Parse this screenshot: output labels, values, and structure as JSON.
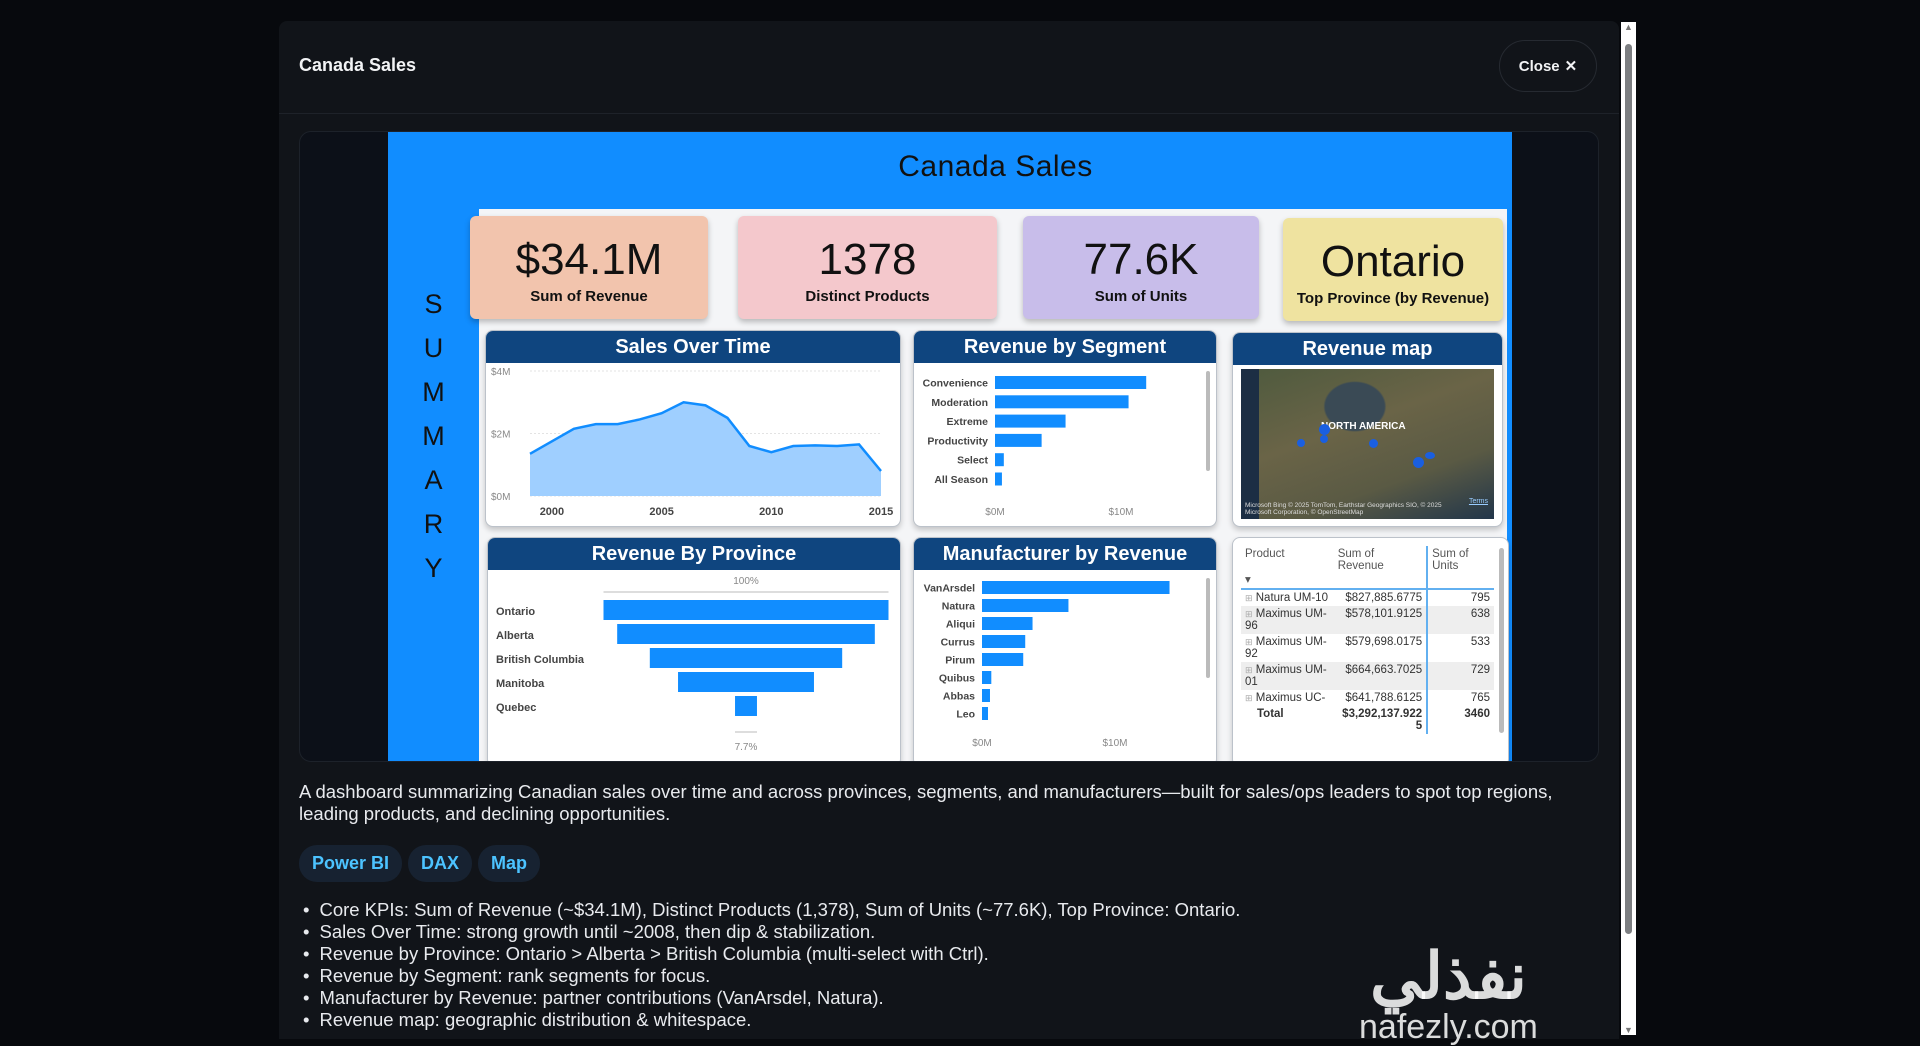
{
  "modal": {
    "title": "Canada Sales",
    "close_label": "Close",
    "close_icon": "x-icon"
  },
  "dashboard": {
    "title": "Canada Sales",
    "side_letters": [
      "S",
      "U",
      "M",
      "M",
      "A",
      "R",
      "Y"
    ],
    "kpis": [
      {
        "value": "$34.1M",
        "label": "Sum of Revenue",
        "color": "#f2c4ad"
      },
      {
        "value": "1378",
        "label": "Distinct Products",
        "color": "#f4c8cc"
      },
      {
        "value": "77.6K",
        "label": "Sum of Units",
        "color": "#c8bdea"
      },
      {
        "value": "Ontario",
        "label": "Top Province (by Revenue)",
        "color": "#efe3a0"
      }
    ],
    "panels": {
      "sales_time": "Sales Over Time",
      "segment": "Revenue by Segment",
      "map": "Revenue map",
      "province": "Revenue By Province",
      "manufacturer": "Manufacturer by Revenue"
    },
    "map": {
      "label": "NORTH AMERICA",
      "credit": "© 2025 TomTom, Earthstar Geographics SIO, © 2025 Microsoft Corporation, © OpenStreetMap",
      "terms": "Terms",
      "brand": "Microsoft Bing"
    },
    "table": {
      "headers": [
        "Product",
        "Sum of Revenue",
        "Sum of Units"
      ],
      "rows": [
        [
          "Natura UM-10",
          "$827,885.6775",
          "795"
        ],
        [
          "Maximus UM-96",
          "$578,101.9125",
          "638"
        ],
        [
          "Maximus UM-92",
          "$579,698.0175",
          "533"
        ],
        [
          "Maximus UM-01",
          "$664,663.7025",
          "729"
        ],
        [
          "Maximus UC-",
          "$641,788.6125",
          "765"
        ]
      ],
      "total": [
        "Total",
        "$3,292,137.9225",
        "3460"
      ]
    }
  },
  "chart_data": [
    {
      "type": "area",
      "title": "Sales Over Time",
      "x": [
        1999,
        2000,
        2001,
        2002,
        2003,
        2004,
        2005,
        2006,
        2007,
        2008,
        2009,
        2010,
        2011,
        2012,
        2013,
        2014,
        2015
      ],
      "values": [
        1.35,
        1.75,
        2.15,
        2.3,
        2.3,
        2.45,
        2.65,
        3.0,
        2.9,
        2.5,
        1.6,
        1.4,
        1.6,
        1.62,
        1.6,
        1.65,
        0.8
      ],
      "unit": "$M",
      "ylim": [
        0,
        4
      ],
      "yticks": [
        "$0M",
        "$2M",
        "$4M"
      ],
      "xticks": [
        "2000",
        "2005",
        "2010",
        "2015"
      ],
      "color": "#118dff"
    },
    {
      "type": "bar",
      "title": "Revenue by Segment",
      "categories": [
        "Convenience",
        "Moderation",
        "Extreme",
        "Productivity",
        "Select",
        "All Season"
      ],
      "values": [
        12.0,
        10.6,
        5.6,
        3.7,
        0.7,
        0.55
      ],
      "unit": "$M",
      "xticks": [
        "$0M",
        "$10M"
      ]
    },
    {
      "type": "funnel",
      "title": "Revenue By Province",
      "categories": [
        "Ontario",
        "Alberta",
        "British Columbia",
        "Manitoba",
        "Quebec"
      ],
      "values": [
        100,
        90.4,
        67.5,
        47.7,
        7.7
      ],
      "unit": "%",
      "top_label": "100%",
      "bottom_label": "7.7%"
    },
    {
      "type": "bar",
      "title": "Manufacturer by Revenue",
      "categories": [
        "VanArsdel",
        "Natura",
        "Aliqui",
        "Currus",
        "Pirum",
        "Quibus",
        "Abbas",
        "Leo"
      ],
      "values": [
        14.1,
        6.5,
        3.8,
        3.25,
        3.1,
        0.7,
        0.6,
        0.45
      ],
      "unit": "$M",
      "xticks": [
        "$0M",
        "$10M"
      ]
    }
  ],
  "description": "A dashboard summarizing Canadian sales over time and across provinces, segments, and manufacturers—built for sales/ops leaders to spot top regions, leading products, and declining opportunities.",
  "tags": [
    "Power BI",
    "DAX",
    "Map"
  ],
  "bullets": [
    "Core KPIs: Sum of Revenue (~$34.1M), Distinct Products (1,378), Sum of Units (~77.6K), Top Province: Ontario.",
    "Sales Over Time: strong growth until ~2008, then dip & stabilization.",
    "Revenue by Province: Ontario > Alberta > British Columbia (multi-select with Ctrl).",
    "Revenue by Segment: rank segments for focus.",
    "Manufacturer by Revenue: partner contributions (VanArsdel, Natura).",
    "Revenue map: geographic distribution & whitespace."
  ],
  "watermark": {
    "arabic": "نفذلي",
    "latin": "nafezly.com"
  }
}
